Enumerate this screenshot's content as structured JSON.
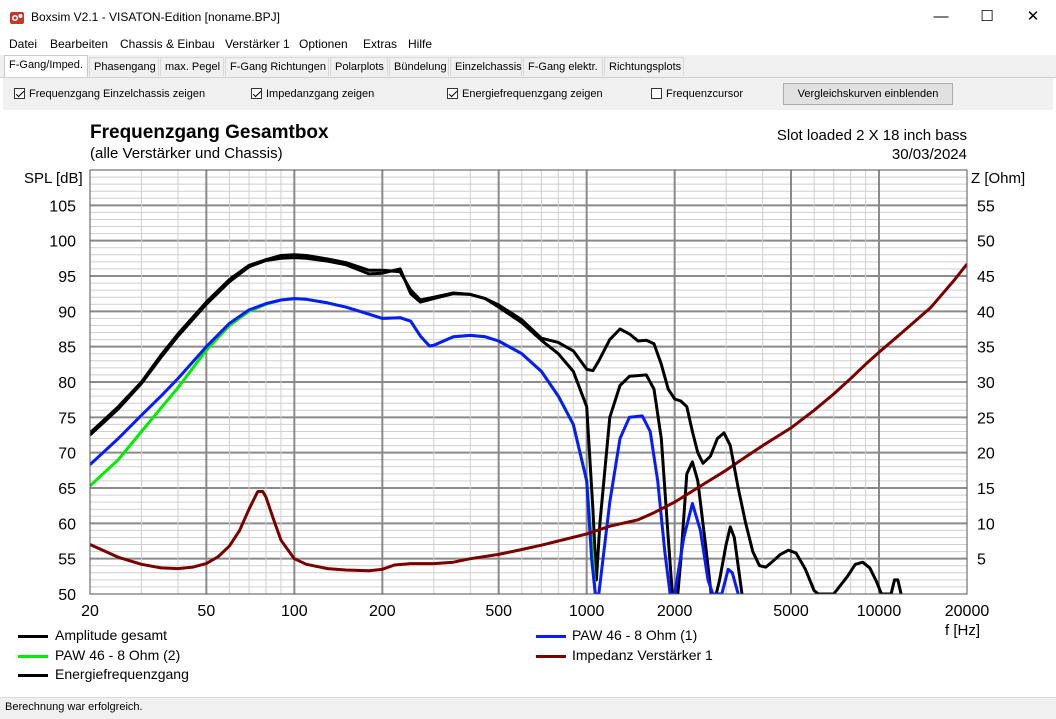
{
  "window": {
    "title": "Boxsim V2.1 - VISATON-Edition [noname.BPJ]",
    "minimize_glyph": "—",
    "maximize_glyph": "☐",
    "close_glyph": "✕"
  },
  "menu": [
    "Datei",
    "Bearbeiten",
    "Chassis & Einbau",
    "Verstärker 1",
    "Optionen",
    "Extras",
    "Hilfe"
  ],
  "tabs": [
    "F-Gang/Imped.",
    "Phasengang",
    "max. Pegel",
    "F-Gang Richtungen",
    "Polarplots",
    "Bündelung",
    "Einzelchassis",
    "F-Gang elektr.",
    "Richtungsplots"
  ],
  "active_tab": 0,
  "options": {
    "checkboxes": [
      {
        "label": "Frequenzgang Einzelchassis zeigen",
        "checked": true
      },
      {
        "label": "Impedanzgang zeigen",
        "checked": true
      },
      {
        "label": "Energiefrequenzgang zeigen",
        "checked": true
      },
      {
        "label": "Frequenzcursor",
        "checked": false
      }
    ],
    "compare_button": "Vergleichskurven einblenden"
  },
  "status": "Berechnung war erfolgreich.",
  "chart_data": {
    "type": "line",
    "title": "Frequenzgang Gesamtbox",
    "subtitle": "(alle Verstärker und Chassis)",
    "project_name": "Slot loaded 2 X 18 inch bass",
    "date": "30/03/2024",
    "ylabel": "SPL [dB]",
    "y2label": "Z [Ohm]",
    "xlabel": "f [Hz]",
    "xscale": "log",
    "xlim": [
      20,
      20000
    ],
    "ylim": [
      50,
      110
    ],
    "y2lim": [
      0,
      60
    ],
    "x_ticks": [
      20,
      50,
      100,
      200,
      500,
      1000,
      2000,
      5000,
      10000,
      20000
    ],
    "y_ticks": [
      50,
      55,
      60,
      65,
      70,
      75,
      80,
      85,
      90,
      95,
      100,
      105
    ],
    "y2_ticks": [
      5,
      10,
      15,
      20,
      25,
      30,
      35,
      40,
      45,
      50,
      55
    ],
    "y2_top_label": "",
    "series": [
      {
        "name": "Amplitude gesamt",
        "color": "#000000",
        "axis": "left",
        "points": [
          [
            20,
            72.8
          ],
          [
            25,
            76.5
          ],
          [
            30,
            80
          ],
          [
            35,
            83.8
          ],
          [
            40,
            86.8
          ],
          [
            50,
            91.3
          ],
          [
            60,
            94.5
          ],
          [
            70,
            96.5
          ],
          [
            80,
            97.3
          ],
          [
            90,
            97.9
          ],
          [
            100,
            98
          ],
          [
            110,
            97.9
          ],
          [
            130,
            97.4
          ],
          [
            150,
            96.9
          ],
          [
            180,
            95.8
          ],
          [
            200,
            95.8
          ],
          [
            230,
            95.6
          ],
          [
            250,
            93
          ],
          [
            270,
            91.6
          ],
          [
            300,
            92
          ],
          [
            350,
            92.6
          ],
          [
            400,
            92.4
          ],
          [
            450,
            91.8
          ],
          [
            500,
            90.6
          ],
          [
            600,
            88.4
          ],
          [
            700,
            85.9
          ],
          [
            800,
            84
          ],
          [
            900,
            81.5
          ],
          [
            1000,
            76.5
          ],
          [
            1050,
            62
          ],
          [
            1080,
            52
          ],
          [
            1110,
            60
          ],
          [
            1200,
            75
          ],
          [
            1300,
            79.5
          ],
          [
            1400,
            80.8
          ],
          [
            1600,
            81
          ],
          [
            1700,
            79
          ],
          [
            1800,
            72
          ],
          [
            1900,
            58
          ],
          [
            1980,
            48
          ],
          [
            2000,
            45
          ],
          [
            2100,
            55
          ],
          [
            2200,
            67
          ],
          [
            2300,
            68.7
          ],
          [
            2400,
            66
          ],
          [
            2550,
            57
          ],
          [
            2700,
            48
          ],
          [
            2850,
            52
          ],
          [
            3000,
            57
          ],
          [
            3100,
            59.5
          ],
          [
            3200,
            58
          ],
          [
            3400,
            50
          ],
          [
            3600,
            45
          ]
        ]
      },
      {
        "name": "PAW 46 - 8 Ohm (2)",
        "color": "#00ee00",
        "axis": "left",
        "points": [
          [
            20,
            65.3
          ],
          [
            25,
            69
          ],
          [
            30,
            73
          ],
          [
            35,
            76.3
          ],
          [
            40,
            79.2
          ],
          [
            50,
            84.5
          ],
          [
            60,
            88
          ],
          [
            70,
            90
          ],
          [
            80,
            91
          ],
          [
            90,
            91.6
          ],
          [
            100,
            91.8
          ],
          [
            110,
            91.7
          ],
          [
            130,
            91.2
          ],
          [
            150,
            90.6
          ],
          [
            180,
            89.6
          ],
          [
            200,
            89
          ],
          [
            230,
            89.1
          ],
          [
            250,
            88.6
          ],
          [
            270,
            86.5
          ],
          [
            290,
            85.1
          ],
          [
            300,
            85.2
          ],
          [
            350,
            86.4
          ],
          [
            400,
            86.6
          ],
          [
            450,
            86.4
          ],
          [
            500,
            85.8
          ],
          [
            600,
            84
          ],
          [
            700,
            81.5
          ],
          [
            800,
            78
          ],
          [
            900,
            74
          ],
          [
            1000,
            66
          ],
          [
            1050,
            55
          ],
          [
            1070,
            50
          ]
        ]
      },
      {
        "name": "PAW 46 - 8 Ohm (1)",
        "color": "#0a1aff",
        "axis": "left",
        "points": [
          [
            20,
            68.3
          ],
          [
            25,
            72
          ],
          [
            30,
            75.3
          ],
          [
            35,
            78
          ],
          [
            40,
            80.5
          ],
          [
            50,
            85
          ],
          [
            60,
            88.3
          ],
          [
            70,
            90.2
          ],
          [
            80,
            91.1
          ],
          [
            90,
            91.6
          ],
          [
            100,
            91.8
          ],
          [
            110,
            91.7
          ],
          [
            130,
            91.2
          ],
          [
            150,
            90.6
          ],
          [
            180,
            89.6
          ],
          [
            200,
            89
          ],
          [
            230,
            89.1
          ],
          [
            250,
            88.6
          ],
          [
            270,
            86.5
          ],
          [
            290,
            85.1
          ],
          [
            300,
            85.2
          ],
          [
            350,
            86.4
          ],
          [
            400,
            86.6
          ],
          [
            450,
            86.4
          ],
          [
            500,
            85.8
          ],
          [
            600,
            84
          ],
          [
            700,
            81.5
          ],
          [
            800,
            78
          ],
          [
            900,
            74
          ],
          [
            1000,
            66
          ],
          [
            1040,
            55
          ],
          [
            1070,
            50
          ],
          [
            1100,
            50
          ],
          [
            1200,
            63
          ],
          [
            1300,
            72
          ],
          [
            1400,
            75
          ],
          [
            1550,
            75.2
          ],
          [
            1650,
            73
          ],
          [
            1750,
            66
          ],
          [
            1850,
            56
          ],
          [
            1930,
            50
          ],
          [
            2000,
            50
          ],
          [
            2150,
            58
          ],
          [
            2300,
            62.8
          ],
          [
            2450,
            59
          ],
          [
            2600,
            52
          ],
          [
            2700,
            50
          ],
          [
            2900,
            50
          ],
          [
            3050,
            53.5
          ],
          [
            3150,
            53
          ],
          [
            3300,
            50
          ]
        ]
      },
      {
        "name": "Impedanz Verstärker 1",
        "color": "#7a0000",
        "axis": "right",
        "points": [
          [
            20,
            7
          ],
          [
            25,
            5.2
          ],
          [
            30,
            4.2
          ],
          [
            35,
            3.7
          ],
          [
            40,
            3.6
          ],
          [
            45,
            3.8
          ],
          [
            50,
            4.3
          ],
          [
            55,
            5.3
          ],
          [
            60,
            6.8
          ],
          [
            65,
            9
          ],
          [
            70,
            12
          ],
          [
            75,
            14.5
          ],
          [
            78,
            14.5
          ],
          [
            80,
            13.7
          ],
          [
            85,
            10.5
          ],
          [
            90,
            7.6
          ],
          [
            100,
            5
          ],
          [
            110,
            4.2
          ],
          [
            130,
            3.6
          ],
          [
            150,
            3.4
          ],
          [
            180,
            3.3
          ],
          [
            200,
            3.5
          ],
          [
            220,
            4.1
          ],
          [
            250,
            4.3
          ],
          [
            300,
            4.3
          ],
          [
            350,
            4.5
          ],
          [
            400,
            5
          ],
          [
            500,
            5.6
          ],
          [
            600,
            6.3
          ],
          [
            700,
            6.9
          ],
          [
            800,
            7.5
          ],
          [
            1000,
            8.5
          ],
          [
            1200,
            9.6
          ],
          [
            1500,
            10.5
          ],
          [
            1700,
            11.5
          ],
          [
            2000,
            13
          ],
          [
            2500,
            15.5
          ],
          [
            3000,
            17.5
          ],
          [
            3500,
            19.4
          ],
          [
            4000,
            21
          ],
          [
            5000,
            23.5
          ],
          [
            6000,
            26
          ],
          [
            7000,
            28.3
          ],
          [
            8000,
            30.5
          ],
          [
            9000,
            32.5
          ],
          [
            10000,
            34.2
          ],
          [
            12000,
            37
          ],
          [
            15000,
            40.5
          ],
          [
            18000,
            44.3
          ],
          [
            20000,
            46.7
          ]
        ]
      },
      {
        "name": "Energiefrequenzgang",
        "color": "#000000",
        "axis": "left",
        "points": [
          [
            20,
            72.5
          ],
          [
            25,
            76.2
          ],
          [
            30,
            79.8
          ],
          [
            35,
            83.5
          ],
          [
            40,
            86.5
          ],
          [
            50,
            91
          ],
          [
            60,
            94.2
          ],
          [
            70,
            96.3
          ],
          [
            80,
            97.2
          ],
          [
            90,
            97.5
          ],
          [
            100,
            97.6
          ],
          [
            110,
            97.5
          ],
          [
            130,
            97.1
          ],
          [
            150,
            96.6
          ],
          [
            180,
            95.3
          ],
          [
            200,
            95.4
          ],
          [
            230,
            96
          ],
          [
            250,
            92.5
          ],
          [
            270,
            91.3
          ],
          [
            300,
            91.8
          ],
          [
            350,
            92.5
          ],
          [
            400,
            92.4
          ],
          [
            450,
            91.8
          ],
          [
            500,
            90.9
          ],
          [
            600,
            88.8
          ],
          [
            700,
            86.2
          ],
          [
            800,
            85.6
          ],
          [
            900,
            84.4
          ],
          [
            1000,
            81.8
          ],
          [
            1050,
            81.6
          ],
          [
            1100,
            83
          ],
          [
            1200,
            86
          ],
          [
            1300,
            87.5
          ],
          [
            1400,
            86.8
          ],
          [
            1500,
            85.8
          ],
          [
            1600,
            85.9
          ],
          [
            1700,
            85.4
          ],
          [
            1800,
            82.5
          ],
          [
            1900,
            79
          ],
          [
            2000,
            77.6
          ],
          [
            2100,
            77.3
          ],
          [
            2200,
            76.5
          ],
          [
            2300,
            73
          ],
          [
            2400,
            70
          ],
          [
            2500,
            68.5
          ],
          [
            2650,
            69.5
          ],
          [
            2800,
            72
          ],
          [
            2950,
            72.8
          ],
          [
            3100,
            71
          ],
          [
            3300,
            65
          ],
          [
            3500,
            60
          ],
          [
            3700,
            56
          ],
          [
            3900,
            54
          ],
          [
            4100,
            53.8
          ],
          [
            4300,
            54.5
          ],
          [
            4600,
            55.6
          ],
          [
            4900,
            56.2
          ],
          [
            5200,
            55.8
          ],
          [
            5600,
            53.5
          ],
          [
            6000,
            50.5
          ],
          [
            6200,
            50
          ],
          [
            7000,
            50
          ],
          [
            7800,
            52.5
          ],
          [
            8300,
            54.2
          ],
          [
            8800,
            54.5
          ],
          [
            9300,
            53.7
          ],
          [
            9800,
            51.8
          ],
          [
            10200,
            50
          ],
          [
            11000,
            50
          ],
          [
            11300,
            52
          ],
          [
            11600,
            52
          ],
          [
            11900,
            50
          ]
        ]
      }
    ],
    "legend_order": [
      "Amplitude gesamt",
      "PAW 46 - 8 Ohm (2)",
      "Energiefrequenzgang",
      "PAW 46 - 8 Ohm (1)",
      "Impedanz Verstärker 1"
    ],
    "grid": true
  }
}
